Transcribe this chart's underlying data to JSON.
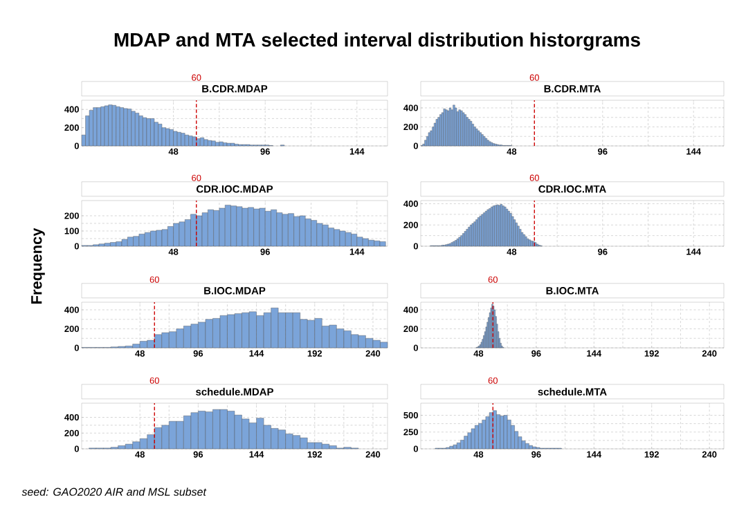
{
  "chart_data": [
    {
      "type": "other",
      "title": "MDAP and MTA selected interval distribution historgrams",
      "ylabel": "Frequency",
      "annotations": [
        "*seed: GAO2020 AIR and MSL subset*"
      ]
    },
    {
      "type": "histogram",
      "title": "B.CDR.MDAP",
      "color": "#7ba4d9",
      "grid": true,
      "xlim": [
        0,
        160
      ],
      "xticks": [
        48,
        96,
        144
      ],
      "ylim": [
        0,
        500
      ],
      "yticks": [
        0,
        200,
        400
      ],
      "bins": [
        0,
        2,
        4,
        6,
        8,
        10,
        12,
        14,
        16,
        18,
        20,
        22,
        24,
        26,
        28,
        30,
        32,
        34,
        36,
        38,
        40,
        42,
        44,
        46,
        48,
        50,
        52,
        54,
        56,
        58,
        60,
        62,
        64,
        66,
        68,
        70,
        72,
        74,
        76,
        78,
        80,
        82,
        84,
        86,
        88,
        90,
        92,
        94,
        96,
        98,
        100,
        102,
        104,
        106
      ],
      "values": [
        120,
        330,
        390,
        420,
        420,
        430,
        440,
        450,
        445,
        430,
        420,
        410,
        405,
        380,
        360,
        330,
        310,
        300,
        300,
        260,
        240,
        200,
        190,
        180,
        160,
        150,
        140,
        120,
        110,
        100,
        80,
        90,
        70,
        60,
        55,
        40,
        45,
        35,
        30,
        30,
        20,
        15,
        15,
        15,
        10,
        10,
        10,
        10,
        10,
        5,
        null,
        null,
        10
      ],
      "ref_lines": [
        {
          "axis": "x",
          "value": 60,
          "label": "60",
          "color": "#cc0000",
          "line_style": "dashed"
        }
      ]
    },
    {
      "type": "histogram",
      "title": "B.CDR.MTA",
      "color": "#7ba4d9",
      "grid": true,
      "xlim": [
        0,
        160
      ],
      "xticks": [
        48,
        96,
        144
      ],
      "ylim": [
        0,
        480
      ],
      "yticks": [
        0,
        200,
        400
      ],
      "bins": [
        0,
        1,
        2,
        3,
        4,
        5,
        6,
        7,
        8,
        9,
        10,
        11,
        12,
        13,
        14,
        15,
        16,
        17,
        18,
        19,
        20,
        21,
        22,
        23,
        24,
        25,
        26,
        27,
        28,
        29,
        30,
        31,
        32,
        33,
        34,
        35,
        36,
        37,
        38,
        39,
        40,
        41,
        42,
        43,
        44,
        45,
        46,
        47,
        48
      ],
      "values": [
        5,
        20,
        60,
        100,
        140,
        160,
        200,
        240,
        280,
        300,
        330,
        350,
        390,
        380,
        370,
        400,
        380,
        430,
        400,
        360,
        380,
        370,
        350,
        330,
        300,
        280,
        260,
        230,
        200,
        180,
        160,
        140,
        120,
        100,
        80,
        60,
        45,
        35,
        25,
        20,
        15,
        10,
        10,
        5,
        5,
        5,
        5,
        5
      ],
      "ref_lines": [
        {
          "axis": "x",
          "value": 60,
          "label": "60",
          "color": "#cc0000",
          "line_style": "dashed"
        }
      ]
    },
    {
      "type": "histogram",
      "title": "CDR.IOC.MDAP",
      "color": "#7ba4d9",
      "grid": true,
      "xlim": [
        0,
        160
      ],
      "xticks": [
        48,
        96,
        144
      ],
      "ylim": [
        0,
        300
      ],
      "yticks": [
        0,
        100,
        200
      ],
      "bins": [
        0,
        3,
        6,
        9,
        12,
        15,
        18,
        21,
        24,
        27,
        30,
        33,
        36,
        39,
        42,
        45,
        48,
        51,
        54,
        57,
        60,
        63,
        66,
        69,
        72,
        75,
        78,
        81,
        84,
        87,
        90,
        93,
        96,
        99,
        102,
        105,
        108,
        111,
        114,
        117,
        120,
        123,
        126,
        129,
        132,
        135,
        138,
        141,
        144,
        147,
        150,
        153,
        156,
        159
      ],
      "values": [
        5,
        5,
        10,
        15,
        20,
        25,
        30,
        45,
        60,
        65,
        80,
        90,
        100,
        105,
        110,
        130,
        150,
        160,
        175,
        210,
        200,
        220,
        240,
        235,
        250,
        270,
        265,
        260,
        250,
        255,
        245,
        250,
        230,
        240,
        220,
        210,
        215,
        195,
        200,
        180,
        170,
        150,
        140,
        120,
        110,
        100,
        90,
        80,
        60,
        50,
        40,
        35,
        30
      ],
      "ref_lines": [
        {
          "axis": "x",
          "value": 60,
          "label": "60",
          "color": "#cc0000",
          "line_style": "dashed"
        }
      ]
    },
    {
      "type": "histogram",
      "title": "CDR.IOC.MTA",
      "color": "#7ba4d9",
      "grid": true,
      "xlim": [
        0,
        160
      ],
      "xticks": [
        48,
        96,
        144
      ],
      "ylim": [
        0,
        430
      ],
      "yticks": [
        0,
        200,
        400
      ],
      "bins": [
        5,
        6,
        7,
        8,
        9,
        10,
        11,
        12,
        13,
        14,
        15,
        16,
        17,
        18,
        19,
        20,
        21,
        22,
        23,
        24,
        25,
        26,
        27,
        28,
        29,
        30,
        31,
        32,
        33,
        34,
        35,
        36,
        37,
        38,
        39,
        40,
        41,
        42,
        43,
        44,
        45,
        46,
        47,
        48,
        49,
        50,
        51,
        52,
        53,
        54,
        55,
        56,
        57,
        58,
        59,
        60,
        61,
        62,
        63,
        64
      ],
      "values": [
        5,
        5,
        5,
        5,
        5,
        5,
        10,
        10,
        15,
        20,
        25,
        35,
        45,
        55,
        70,
        85,
        100,
        120,
        140,
        160,
        180,
        200,
        215,
        230,
        250,
        270,
        285,
        300,
        315,
        330,
        345,
        355,
        370,
        380,
        385,
        390,
        385,
        395,
        380,
        370,
        350,
        330,
        310,
        280,
        250,
        220,
        190,
        160,
        130,
        110,
        90,
        70,
        60,
        50,
        45,
        35,
        20,
        10,
        5
      ],
      "ref_lines": [
        {
          "axis": "x",
          "value": 60,
          "label": "60",
          "color": "#cc0000",
          "line_style": "dashed"
        }
      ]
    },
    {
      "type": "histogram",
      "title": "B.IOC.MDAP",
      "color": "#7ba4d9",
      "grid": true,
      "xlim": [
        0,
        252
      ],
      "xticks": [
        48,
        96,
        144,
        192,
        240
      ],
      "ylim": [
        0,
        480
      ],
      "yticks": [
        0,
        200,
        400
      ],
      "bins": [
        0,
        6,
        12,
        18,
        24,
        30,
        36,
        42,
        48,
        54,
        60,
        66,
        72,
        78,
        84,
        90,
        96,
        102,
        108,
        114,
        120,
        126,
        132,
        138,
        144,
        150,
        156,
        162,
        168,
        174,
        180,
        186,
        192,
        198,
        204,
        210,
        216,
        222,
        228,
        234,
        240,
        246,
        252
      ],
      "values": [
        5,
        5,
        5,
        5,
        10,
        15,
        20,
        40,
        70,
        80,
        140,
        160,
        170,
        200,
        230,
        250,
        270,
        300,
        310,
        340,
        350,
        360,
        370,
        380,
        340,
        370,
        420,
        370,
        370,
        370,
        300,
        290,
        310,
        230,
        240,
        200,
        180,
        140,
        130,
        100,
        80,
        60
      ],
      "ref_lines": [
        {
          "axis": "x",
          "value": 60,
          "label": "60",
          "color": "#cc0000",
          "line_style": "dashed"
        }
      ]
    },
    {
      "type": "histogram",
      "title": "B.IOC.MTA",
      "color": "#7ba4d9",
      "grid": true,
      "xlim": [
        0,
        252
      ],
      "xticks": [
        48,
        96,
        144,
        192,
        240
      ],
      "ylim": [
        0,
        480
      ],
      "yticks": [
        0,
        200,
        400
      ],
      "bins": [
        46,
        47,
        48,
        49,
        50,
        51,
        52,
        53,
        54,
        55,
        56,
        57,
        58,
        59,
        60,
        61,
        62,
        63,
        64,
        65,
        66,
        67,
        68,
        69
      ],
      "values": [
        5,
        10,
        20,
        35,
        60,
        90,
        130,
        170,
        220,
        270,
        320,
        370,
        420,
        460,
        440,
        400,
        330,
        250,
        170,
        100,
        50,
        20,
        5
      ],
      "ref_lines": [
        {
          "axis": "x",
          "value": 60,
          "label": "60",
          "color": "#cc0000",
          "line_style": "dashed"
        }
      ]
    },
    {
      "type": "histogram",
      "title": "schedule.MDAP",
      "color": "#7ba4d9",
      "grid": true,
      "xlim": [
        0,
        252
      ],
      "xticks": [
        48,
        96,
        144,
        192,
        240
      ],
      "ylim": [
        0,
        580
      ],
      "yticks": [
        0,
        200,
        400
      ],
      "bins": [
        6,
        12,
        18,
        24,
        30,
        36,
        42,
        48,
        54,
        60,
        66,
        72,
        78,
        84,
        90,
        96,
        102,
        108,
        114,
        120,
        126,
        132,
        138,
        144,
        150,
        156,
        162,
        168,
        174,
        180,
        186,
        192,
        198,
        204,
        210,
        216,
        222,
        228
      ],
      "values": [
        10,
        10,
        10,
        20,
        40,
        60,
        90,
        130,
        180,
        270,
        300,
        350,
        350,
        420,
        460,
        480,
        470,
        500,
        500,
        480,
        430,
        380,
        330,
        390,
        300,
        260,
        240,
        190,
        170,
        140,
        80,
        80,
        60,
        40,
        10,
        20,
        10
      ],
      "ref_lines": [
        {
          "axis": "x",
          "value": 60,
          "label": "60",
          "color": "#cc0000",
          "line_style": "dashed"
        }
      ]
    },
    {
      "type": "histogram",
      "title": "schedule.MTA",
      "color": "#7ba4d9",
      "grid": true,
      "xlim": [
        0,
        252
      ],
      "xticks": [
        48,
        96,
        144,
        192,
        240
      ],
      "ylim": [
        0,
        680
      ],
      "yticks": [
        0,
        250,
        500
      ],
      "bins": [
        12,
        15,
        18,
        21,
        24,
        27,
        30,
        33,
        36,
        39,
        42,
        45,
        48,
        51,
        54,
        57,
        60,
        63,
        66,
        69,
        72,
        75,
        78,
        81,
        84,
        87,
        90,
        93,
        96,
        99,
        102,
        105,
        108,
        111,
        114,
        117
      ],
      "values": [
        10,
        10,
        10,
        20,
        40,
        60,
        90,
        130,
        190,
        240,
        300,
        350,
        380,
        430,
        480,
        540,
        570,
        510,
        490,
        500,
        430,
        350,
        260,
        180,
        120,
        80,
        50,
        30,
        20,
        10,
        10,
        10,
        10,
        10,
        10
      ],
      "ref_lines": [
        {
          "axis": "x",
          "value": 60,
          "label": "60",
          "color": "#cc0000",
          "line_style": "dashed"
        }
      ]
    }
  ]
}
